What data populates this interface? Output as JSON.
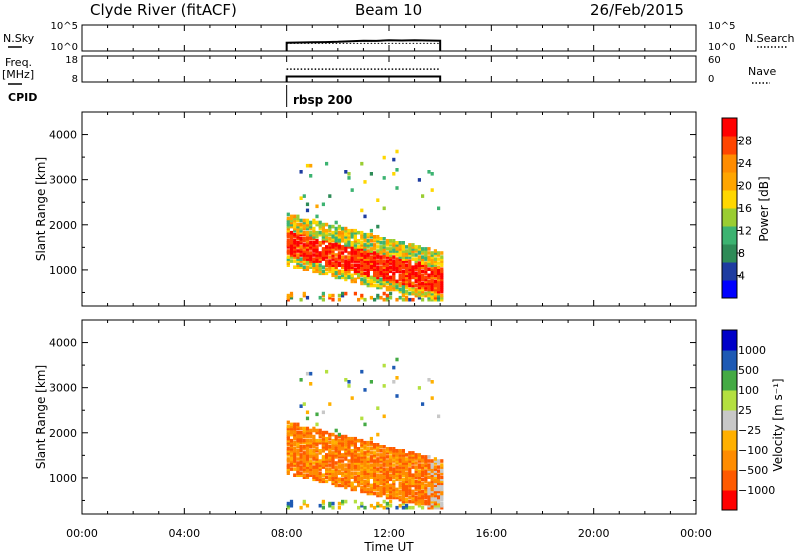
{
  "header": {
    "station": "Clyde River (fitACF)",
    "beam": "Beam 10",
    "date": "26/Feb/2015"
  },
  "left_labels": {
    "nsky": "N.Sky",
    "freq": "Freq.",
    "mhz": "[MHz]",
    "cpid": "CPID"
  },
  "right_labels": {
    "nsearch": "N.Search",
    "nave": "Nave"
  },
  "colors": {
    "power": [
      "#0000ff",
      "#1e3ca0",
      "#2e8b57",
      "#3cb371",
      "#9acd32",
      "#ffd700",
      "#ffa500",
      "#ff8c00",
      "#ff4500",
      "#ff0000"
    ],
    "velocity": [
      "#ff0000",
      "#ff5a00",
      "#ff8c00",
      "#ffb000",
      "#c8c8c8",
      "#b4e040",
      "#44aa44",
      "#1e5ab4",
      "#0000c8"
    ]
  },
  "chart_data": [
    {
      "type": "line",
      "panel": "noise",
      "ylabel_left": "N.Sky",
      "yticks_left": [
        "10^5",
        "10^0"
      ],
      "yticks_right": [
        "10^5",
        "10^0"
      ],
      "series": [
        {
          "name": "N.Sky",
          "x": [
            8.0,
            8.5,
            9.0,
            9.5,
            10.0,
            10.5,
            11.0,
            11.5,
            12.0,
            12.5,
            13.0,
            13.5,
            14.0
          ],
          "y": [
            1.2,
            1.25,
            1.3,
            1.35,
            1.45,
            1.6,
            1.75,
            1.7,
            1.85,
            1.8,
            1.9,
            1.8,
            1.75
          ]
        },
        {
          "name": "N.Search",
          "x": [
            8.0,
            14.0
          ],
          "y": [
            1.0,
            1.0
          ]
        }
      ],
      "xlim": [
        0,
        24
      ]
    },
    {
      "type": "line",
      "panel": "frequency",
      "ylabel_left": "Freq. [MHz]",
      "yticks_left": [
        "18",
        "8"
      ],
      "yticks_right": [
        "60",
        "0"
      ],
      "series": [
        {
          "name": "Freq.",
          "x": [
            8.0,
            14.0
          ],
          "y": [
            10.5,
            10.5
          ]
        },
        {
          "name": "Nave",
          "x": [
            8.0,
            14.0
          ],
          "y": [
            35,
            35
          ]
        }
      ],
      "cpid_label": "rbsp 200",
      "xlim": [
        0,
        24
      ]
    },
    {
      "type": "heatmap",
      "panel": "power",
      "ylabel": "Slant Range [km]",
      "yticks": [
        "1000",
        "2000",
        "3000",
        "4000"
      ],
      "ylim": [
        200,
        4500
      ],
      "xlim": [
        0,
        24
      ],
      "colorbar_label": "Power [dB]",
      "colorbar_ticks": [
        "4",
        "8",
        "12",
        "16",
        "20",
        "24",
        "28"
      ],
      "clim": [
        0,
        32
      ]
    },
    {
      "type": "heatmap",
      "panel": "velocity",
      "ylabel": "Slant Range [km]",
      "yticks": [
        "1000",
        "2000",
        "3000",
        "4000"
      ],
      "ylim": [
        200,
        4500
      ],
      "xlim": [
        0,
        24
      ],
      "colorbar_label": "Velocity [m s⁻¹]",
      "colorbar_ticks": [
        "-1000",
        "-500",
        "-100",
        "-25",
        "25",
        "100",
        "500",
        "1000"
      ],
      "xticks": [
        "00:00",
        "04:00",
        "08:00",
        "12:00",
        "16:00",
        "20:00",
        "00:00"
      ],
      "xlabel": "Time UT"
    }
  ]
}
